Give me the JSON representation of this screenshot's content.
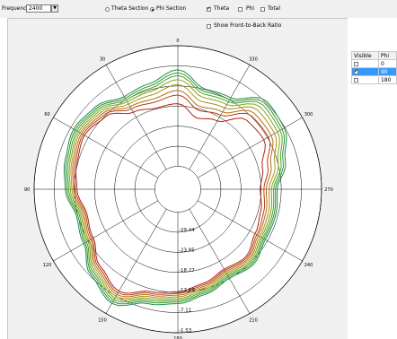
{
  "toolbar": {
    "frequency_label": "Frequency:",
    "frequency_value": "2400",
    "theta_section_label": "Theta Section",
    "phi_section_label": "Phi Section",
    "section_selected": "phi",
    "theta_label": "Theta",
    "phi_label": "Phi",
    "total_label": "Total",
    "theta_checked": true,
    "phi_checked": false,
    "total_checked": false,
    "front_back_label": "Show Front-to-Back Ratio",
    "front_back_checked": false
  },
  "phi_table": {
    "headers": [
      "Visible",
      "Phi"
    ],
    "rows": [
      {
        "visible": false,
        "phi": "0",
        "selected": false
      },
      {
        "visible": true,
        "phi": "90",
        "selected": true
      },
      {
        "visible": false,
        "phi": "180",
        "selected": false
      }
    ]
  },
  "chart_data": {
    "type": "polar-line",
    "angle_ticks": [
      "0",
      "30",
      "60",
      "90",
      "120",
      "150",
      "180",
      "210",
      "240",
      "270",
      "300",
      "330"
    ],
    "radial_ticks": [
      "-29.44",
      "-23.85",
      "-18.27",
      "-12.69",
      "-7.11",
      "-1.53"
    ],
    "radial_range": [
      -35.0,
      -1.53
    ],
    "series_colors": [
      "#b02010",
      "#b63f10",
      "#b86a14",
      "#a89414",
      "#7ea418",
      "#4f9e22",
      "#2e9632",
      "#1c9046"
    ],
    "series": [
      {
        "name": "",
        "scale": 0.94,
        "ripple": 0.0
      },
      {
        "name": "",
        "scale": 0.96,
        "ripple": 0.35
      },
      {
        "name": "",
        "scale": 0.98,
        "ripple": 0.5
      },
      {
        "name": "",
        "scale": 1.0,
        "ripple": 0.7
      },
      {
        "name": "",
        "scale": 1.02,
        "ripple": 0.85
      },
      {
        "name": "",
        "scale": 1.04,
        "ripple": 0.95
      },
      {
        "name": "",
        "scale": 1.06,
        "ripple": 1.0
      },
      {
        "name": "",
        "scale": 1.08,
        "ripple": 1.05
      }
    ],
    "base_pattern": {
      "angles_deg": [
        0,
        15,
        30,
        45,
        60,
        75,
        90,
        105,
        120,
        135,
        150,
        165,
        180,
        195,
        210,
        225,
        240,
        255,
        270,
        285,
        300,
        315,
        330,
        345
      ],
      "values_db": [
        -16.5,
        -17.0,
        -15.5,
        -11.5,
        -10.0,
        -11.0,
        -12.0,
        -14.0,
        -13.0,
        -9.5,
        -7.0,
        -10.5,
        -11.5,
        -13.0,
        -14.5,
        -13.5,
        -15.5,
        -16.5,
        -17.5,
        -16.0,
        -12.5,
        -13.0,
        -18.5,
        -20.0
      ]
    },
    "ripple_pattern": {
      "angles_deg": [
        0,
        15,
        30,
        45,
        60,
        75,
        90,
        105,
        120,
        135,
        150,
        165,
        180,
        195,
        210,
        225,
        240,
        255,
        270,
        285,
        300,
        315,
        330,
        345
      ],
      "values_db": [
        6.0,
        4.0,
        2.0,
        0.5,
        0.0,
        0.0,
        0.0,
        0.0,
        0.0,
        0.0,
        0.0,
        0.0,
        0.0,
        0.0,
        0.0,
        0.0,
        0.5,
        1.5,
        2.0,
        3.5,
        3.0,
        4.0,
        4.5,
        5.5
      ]
    }
  }
}
